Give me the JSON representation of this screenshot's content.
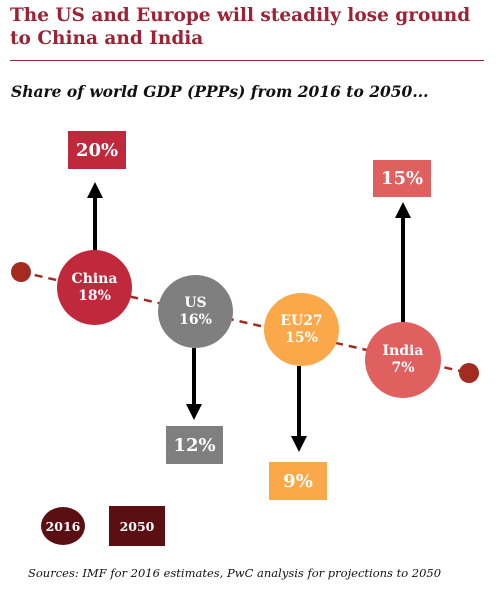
{
  "title": "The US and Europe will steadily lose ground to China and India",
  "subtitle": "Share of world GDP (PPPs) from 2016 to 2050...",
  "countries": [
    {
      "name": "China",
      "share_2016": "18%",
      "share_2050": "20%",
      "color": "#c0283c"
    },
    {
      "name": "US",
      "share_2016": "16%",
      "share_2050": "12%",
      "color": "#7f7f7f"
    },
    {
      "name": "EU27",
      "share_2016": "15%",
      "share_2050": "9%",
      "color": "#fba84a"
    },
    {
      "name": "India",
      "share_2016": "7%",
      "share_2050": "15%",
      "color": "#e06060"
    }
  ],
  "legend": {
    "label_2016": "2016",
    "label_2050": "2050",
    "color": "#5c0f12"
  },
  "trend_line_color": "#a42b1f",
  "source": "Sources: IMF for 2016 estimates, PwC analysis for projections to 2050"
}
